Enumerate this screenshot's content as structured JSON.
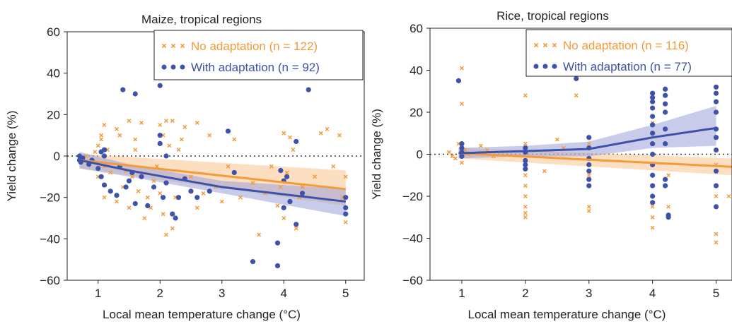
{
  "colors": {
    "no_adaptation": "#f39a3a",
    "with_adaptation": "#3d52a8",
    "band_no": "#f9c38c",
    "band_with": "#9aa3d8"
  },
  "chart_data": [
    {
      "type": "scatter",
      "title": "Maize, tropical regions",
      "xlabel": "Local mean temperature change (°C)",
      "ylabel": "Yield change (%)",
      "xlim": [
        0.5,
        5.3
      ],
      "ylim": [
        -60,
        60
      ],
      "xticks": [
        "1",
        "2",
        "3",
        "4",
        "5"
      ],
      "yticks": [
        "−60",
        "−40",
        "−20",
        "0",
        "20",
        "40",
        "60"
      ],
      "zero_line": "dotted",
      "legend_position": "top-right",
      "series": [
        {
          "name": "No adaptation",
          "legend_label": "No adaptation (n = 122)",
          "marker": "x",
          "points": [
            [
              0.7,
              -2
            ],
            [
              0.75,
              -1
            ],
            [
              0.8,
              0
            ],
            [
              0.9,
              -3
            ],
            [
              0.95,
              2
            ],
            [
              1.0,
              5
            ],
            [
              1.0,
              -10
            ],
            [
              1.05,
              8
            ],
            [
              1.05,
              10
            ],
            [
              1.1,
              15
            ],
            [
              1.1,
              -5
            ],
            [
              1.1,
              -20
            ],
            [
              1.15,
              3
            ],
            [
              1.2,
              -8
            ],
            [
              1.3,
              -22
            ],
            [
              1.3,
              13
            ],
            [
              1.35,
              10
            ],
            [
              1.4,
              -15
            ],
            [
              1.45,
              -7
            ],
            [
              1.5,
              17
            ],
            [
              1.5,
              -25
            ],
            [
              1.55,
              -10
            ],
            [
              1.6,
              3
            ],
            [
              1.6,
              8
            ],
            [
              1.65,
              -17
            ],
            [
              1.7,
              16
            ],
            [
              1.75,
              -30
            ],
            [
              1.8,
              -20
            ],
            [
              1.85,
              -25
            ],
            [
              1.9,
              -12
            ],
            [
              1.95,
              -5
            ],
            [
              2.0,
              15
            ],
            [
              2.0,
              -18
            ],
            [
              2.05,
              -28
            ],
            [
              2.05,
              10
            ],
            [
              2.1,
              -38
            ],
            [
              2.1,
              17
            ],
            [
              2.15,
              5
            ],
            [
              2.2,
              17
            ],
            [
              2.2,
              -35
            ],
            [
              2.25,
              -20
            ],
            [
              2.3,
              3
            ],
            [
              2.35,
              8
            ],
            [
              2.4,
              14
            ],
            [
              2.5,
              -10
            ],
            [
              2.6,
              -25
            ],
            [
              2.6,
              16
            ],
            [
              2.7,
              -18
            ],
            [
              2.8,
              10
            ],
            [
              2.9,
              -15
            ],
            [
              3.0,
              -22
            ],
            [
              3.1,
              -5
            ],
            [
              3.2,
              8
            ],
            [
              3.3,
              -20
            ],
            [
              3.5,
              -13
            ],
            [
              3.6,
              -38
            ],
            [
              3.7,
              -18
            ],
            [
              3.8,
              -5
            ],
            [
              3.9,
              -24
            ],
            [
              3.95,
              -15
            ],
            [
              4.0,
              -30
            ],
            [
              4.0,
              11
            ],
            [
              4.05,
              -8
            ],
            [
              4.1,
              9
            ],
            [
              4.15,
              3
            ],
            [
              4.2,
              -35
            ],
            [
              4.25,
              -20
            ],
            [
              4.3,
              -15
            ],
            [
              4.5,
              -10
            ],
            [
              4.6,
              11
            ],
            [
              4.7,
              13
            ],
            [
              4.8,
              -5
            ],
            [
              4.9,
              10
            ],
            [
              4.95,
              -20
            ],
            [
              5.0,
              -32
            ],
            [
              5.0,
              -10
            ],
            [
              5.0,
              -25
            ]
          ]
        },
        {
          "name": "With adaptation",
          "legend_label": "With adaptation (n = 92)",
          "marker": "circle",
          "points": [
            [
              0.7,
              -2
            ],
            [
              0.7,
              0
            ],
            [
              0.72,
              -3
            ],
            [
              0.75,
              -1
            ],
            [
              0.85,
              -4
            ],
            [
              0.9,
              -2
            ],
            [
              1.0,
              -6
            ],
            [
              1.05,
              2
            ],
            [
              1.05,
              -10
            ],
            [
              1.1,
              0
            ],
            [
              1.1,
              3
            ],
            [
              1.1,
              -14
            ],
            [
              1.2,
              -17
            ],
            [
              1.3,
              -19
            ],
            [
              1.35,
              -5
            ],
            [
              1.4,
              32
            ],
            [
              1.45,
              -15
            ],
            [
              1.5,
              -12
            ],
            [
              1.55,
              -8
            ],
            [
              1.6,
              30
            ],
            [
              1.6,
              -23
            ],
            [
              1.7,
              -10
            ],
            [
              1.8,
              -24
            ],
            [
              1.9,
              -15
            ],
            [
              2.0,
              34
            ],
            [
              2.0,
              10
            ],
            [
              2.0,
              6
            ],
            [
              2.05,
              -20
            ],
            [
              2.1,
              -13
            ],
            [
              2.1,
              0
            ],
            [
              2.2,
              -28
            ],
            [
              2.25,
              -30
            ],
            [
              2.3,
              -20
            ],
            [
              2.4,
              -11
            ],
            [
              2.5,
              -17
            ],
            [
              2.6,
              -20
            ],
            [
              2.8,
              -17
            ],
            [
              3.1,
              12
            ],
            [
              3.2,
              -8
            ],
            [
              3.5,
              -51
            ],
            [
              3.9,
              -42
            ],
            [
              3.9,
              -53
            ],
            [
              3.95,
              -7
            ],
            [
              4.0,
              -12
            ],
            [
              4.0,
              -25
            ],
            [
              4.05,
              -10
            ],
            [
              4.1,
              -22
            ],
            [
              4.2,
              7
            ],
            [
              4.2,
              -33
            ],
            [
              4.3,
              -18
            ],
            [
              4.4,
              32
            ],
            [
              5.0,
              -20
            ],
            [
              5.0,
              -25
            ],
            [
              5.0,
              -28
            ]
          ]
        }
      ],
      "fits": [
        {
          "series": "No adaptation",
          "x": [
            0.7,
            5.0
          ],
          "y": [
            -2,
            -16
          ],
          "ci_lower": [
            -6,
            -24
          ],
          "ci_upper": [
            1,
            -7
          ]
        },
        {
          "series": "With adaptation",
          "x": [
            0.7,
            1.5,
            3.0,
            5.0
          ],
          "y": [
            -2,
            -7,
            -15,
            -22
          ],
          "ci_lower": [
            -6,
            -10,
            -18,
            -29
          ],
          "ci_upper": [
            2,
            -4,
            -12,
            -16
          ]
        }
      ]
    },
    {
      "type": "scatter",
      "title": "Rice, tropical regions",
      "xlabel": "Local mean temperature change (°C)",
      "ylabel": "Yield change (%)",
      "xlim": [
        0.5,
        5.25
      ],
      "ylim": [
        -60,
        60
      ],
      "xticks": [
        "1",
        "2",
        "3",
        "4",
        "5"
      ],
      "yticks": [
        "−60",
        "−40",
        "−20",
        "0",
        "20",
        "40",
        "60"
      ],
      "zero_line": "dotted",
      "legend_position": "top-right",
      "series": [
        {
          "name": "No adaptation",
          "legend_label": "No adaptation (n = 116)",
          "marker": "x",
          "points": [
            [
              0.8,
              1
            ],
            [
              0.85,
              -1
            ],
            [
              0.9,
              -2
            ],
            [
              0.95,
              5
            ],
            [
              1.0,
              41
            ],
            [
              1.0,
              24
            ],
            [
              1.0,
              -4
            ],
            [
              1.0,
              3
            ],
            [
              1.05,
              2
            ],
            [
              1.1,
              0
            ],
            [
              1.3,
              4
            ],
            [
              1.4,
              2
            ],
            [
              1.5,
              -1
            ],
            [
              2.0,
              28
            ],
            [
              2.0,
              -15
            ],
            [
              2.0,
              -20
            ],
            [
              2.0,
              -25
            ],
            [
              2.0,
              -28
            ],
            [
              2.0,
              -30
            ],
            [
              2.0,
              5
            ],
            [
              2.0,
              -10
            ],
            [
              2.3,
              -8
            ],
            [
              2.5,
              7
            ],
            [
              2.6,
              3
            ],
            [
              2.8,
              28
            ],
            [
              3.0,
              -25
            ],
            [
              3.0,
              -27
            ],
            [
              3.0,
              -10
            ],
            [
              3.0,
              5
            ],
            [
              3.0,
              -5
            ],
            [
              4.0,
              -15
            ],
            [
              4.0,
              -20
            ],
            [
              4.0,
              -25
            ],
            [
              4.0,
              -30
            ],
            [
              4.0,
              -35
            ],
            [
              4.0,
              25
            ],
            [
              4.0,
              15
            ],
            [
              4.0,
              10
            ],
            [
              4.0,
              -5
            ],
            [
              4.25,
              -10
            ],
            [
              4.25,
              -25
            ],
            [
              5.0,
              25
            ],
            [
              5.0,
              20
            ],
            [
              5.0,
              -15
            ],
            [
              5.0,
              -20
            ],
            [
              5.0,
              -38
            ],
            [
              5.0,
              -42
            ],
            [
              5.0,
              -5
            ],
            [
              5.2,
              -20
            ]
          ]
        },
        {
          "name": "With adaptation",
          "legend_label": "With adaptation (n = 77)",
          "marker": "circle",
          "points": [
            [
              0.95,
              35
            ],
            [
              1.0,
              5
            ],
            [
              1.0,
              3
            ],
            [
              1.0,
              1
            ],
            [
              1.0,
              -1
            ],
            [
              2.0,
              3
            ],
            [
              2.0,
              1
            ],
            [
              2.0,
              -3
            ],
            [
              2.0,
              -5
            ],
            [
              2.0,
              -7
            ],
            [
              2.8,
              36
            ],
            [
              3.0,
              8
            ],
            [
              3.0,
              3
            ],
            [
              3.0,
              -2
            ],
            [
              3.0,
              -5
            ],
            [
              3.0,
              -8
            ],
            [
              3.0,
              -12
            ],
            [
              3.0,
              -15
            ],
            [
              4.0,
              29
            ],
            [
              4.0,
              27
            ],
            [
              4.0,
              25
            ],
            [
              4.0,
              22
            ],
            [
              4.0,
              18
            ],
            [
              4.0,
              14
            ],
            [
              4.0,
              10
            ],
            [
              4.0,
              5
            ],
            [
              4.0,
              0
            ],
            [
              4.0,
              -5
            ],
            [
              4.0,
              -10
            ],
            [
              4.0,
              -15
            ],
            [
              4.0,
              -20
            ],
            [
              4.0,
              -23
            ],
            [
              4.2,
              31
            ],
            [
              4.2,
              28
            ],
            [
              4.2,
              24
            ],
            [
              4.2,
              20
            ],
            [
              4.2,
              12
            ],
            [
              4.2,
              5
            ],
            [
              4.2,
              -12
            ],
            [
              4.2,
              -15
            ],
            [
              4.25,
              -29
            ],
            [
              4.25,
              -30
            ],
            [
              5.0,
              32
            ],
            [
              5.0,
              29
            ],
            [
              5.0,
              25
            ],
            [
              5.0,
              20
            ],
            [
              5.0,
              12
            ],
            [
              5.0,
              8
            ],
            [
              5.0,
              2
            ],
            [
              5.0,
              -8
            ],
            [
              5.0,
              -15
            ],
            [
              5.0,
              -25
            ]
          ]
        }
      ],
      "fits": [
        {
          "series": "No adaptation",
          "x": [
            0.95,
            5.25
          ],
          "y": [
            0.5,
            -6
          ],
          "ci_lower": [
            -2,
            -10
          ],
          "ci_upper": [
            3,
            -2
          ]
        },
        {
          "series": "With adaptation",
          "x": [
            0.95,
            2.0,
            3.0,
            4.0,
            5.0
          ],
          "y": [
            0.5,
            1.5,
            2.5,
            8,
            12.5
          ],
          "ci_lower": [
            -2,
            -1,
            -1,
            3,
            4
          ],
          "ci_upper": [
            3,
            4,
            6,
            14,
            23
          ]
        }
      ]
    }
  ]
}
